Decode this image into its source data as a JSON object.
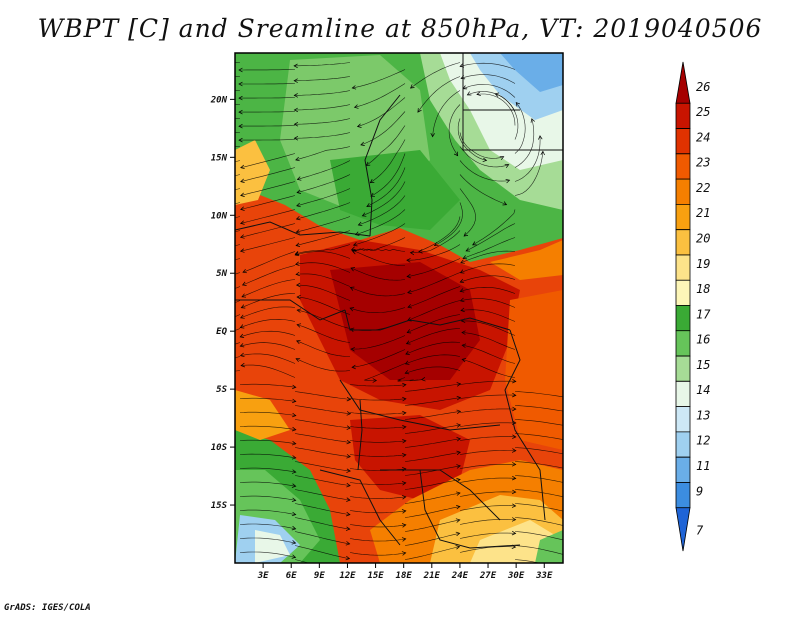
{
  "title": "WBPT [C] and Sreamline at 850hPa, VT: 2019040506",
  "footer": "GrADS: IGES/COLA",
  "map": {
    "lon_range": [
      0,
      35
    ],
    "lat_range": [
      -20,
      24
    ],
    "lat_ticks": [
      {
        "label": "20N",
        "lat": 20
      },
      {
        "label": "15N",
        "lat": 15
      },
      {
        "label": "10N",
        "lat": 10
      },
      {
        "label": "5N",
        "lat": 5
      },
      {
        "label": "EQ",
        "lat": 0
      },
      {
        "label": "5S",
        "lat": -5
      },
      {
        "label": "10S",
        "lat": -10
      },
      {
        "label": "15S",
        "lat": -15
      }
    ],
    "lon_ticks": [
      {
        "label": "3E",
        "lon": 3
      },
      {
        "label": "6E",
        "lon": 6
      },
      {
        "label": "9E",
        "lon": 9
      },
      {
        "label": "12E",
        "lon": 12
      },
      {
        "label": "15E",
        "lon": 15
      },
      {
        "label": "18E",
        "lon": 18
      },
      {
        "label": "21E",
        "lon": 21
      },
      {
        "label": "24E",
        "lon": 24
      },
      {
        "label": "27E",
        "lon": 27
      },
      {
        "label": "30E",
        "lon": 30
      },
      {
        "label": "33E",
        "lon": 33
      }
    ]
  },
  "colorbar": {
    "labels": [
      "26",
      "25",
      "24",
      "23",
      "22",
      "21",
      "20",
      "19",
      "18",
      "17",
      "16",
      "15",
      "14",
      "13",
      "12",
      "11",
      "9",
      "7"
    ],
    "colors": [
      "#a50000",
      "#c81400",
      "#e03200",
      "#f05a00",
      "#f57f00",
      "#f8a010",
      "#fbc040",
      "#fde38a",
      "#fdf6b8",
      "#3aaa35",
      "#66c45a",
      "#a6dc96",
      "#e8f7e8",
      "#cde8f6",
      "#9fd0f0",
      "#6aaee8",
      "#3c8de0",
      "#1f64d6"
    ]
  }
}
